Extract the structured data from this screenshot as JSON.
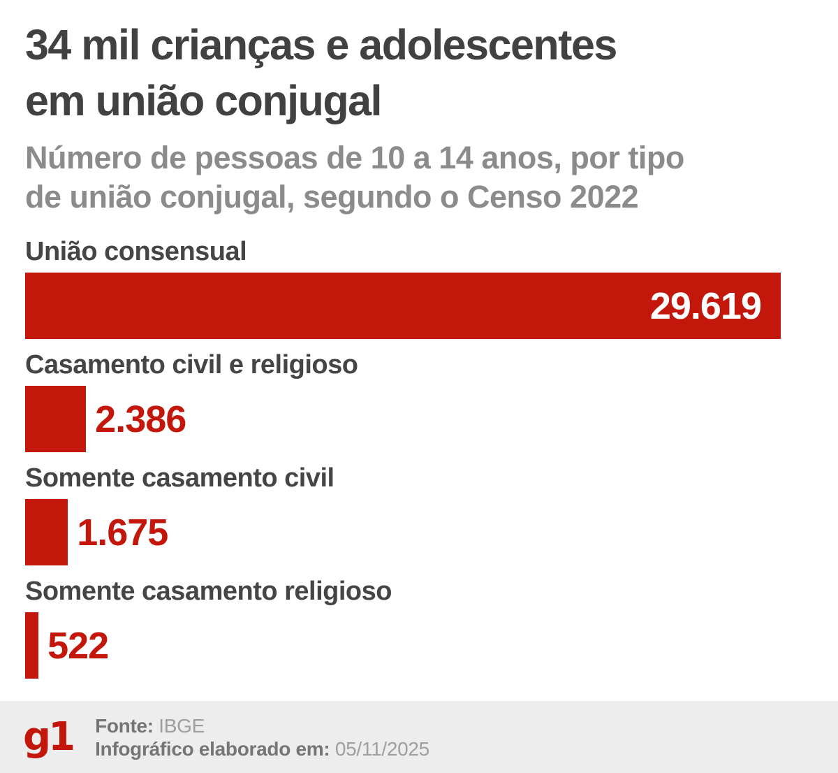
{
  "page": {
    "background": "#ffffff",
    "accent_red": "#c4170c"
  },
  "header": {
    "title": "34 mil crianças e adolescentes\nem união conjugal",
    "subtitle": "Número de pessoas de 10 a 14 anos, por tipo\nde união conjugal, segundo o Censo 2022"
  },
  "chart_data": {
    "type": "bar",
    "orientation": "horizontal",
    "title": "34 mil crianças e adolescentes em união conjugal",
    "subtitle": "Número de pessoas de 10 a 14 anos, por tipo de união conjugal, segundo o Censo 2022",
    "categories": [
      "União consensual",
      "Casamento civil e religioso",
      "Somente casamento civil",
      "Somente casamento religioso"
    ],
    "values": [
      29619,
      2386,
      1675,
      522
    ],
    "display_values": [
      "29.619",
      "2.386",
      "1.675",
      "522"
    ],
    "xlim": [
      0,
      29619
    ],
    "grid": false,
    "legend": false,
    "bar_color": "#c4170c",
    "value_color_inside": "#ffffff",
    "value_color_outside": "#c4170c",
    "label_color": "#454547"
  },
  "footer": {
    "logo": "g1",
    "source_label": "Fonte:",
    "source_value": "IBGE",
    "date_label": "Infográfico elaborado em:",
    "date_value": "05/11/2025"
  }
}
